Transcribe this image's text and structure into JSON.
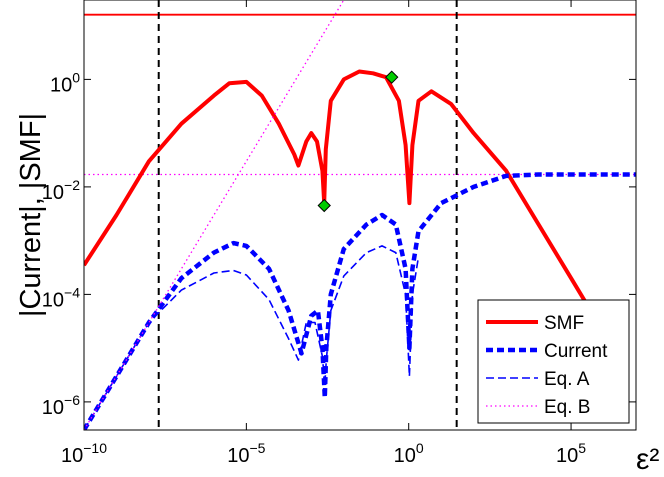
{
  "chart_data": {
    "type": "line",
    "xscale": "log",
    "yscale": "log",
    "xlim": [
      1e-10,
      10000000.0
    ],
    "ylim": [
      3e-07,
      30
    ],
    "xlabel": "ε²",
    "ylabel": "|Current|,  |SMF|",
    "xticks": [
      {
        "value": 1e-10,
        "base": "10",
        "exp": "−10"
      },
      {
        "value": 1e-05,
        "base": "10",
        "exp": "−5"
      },
      {
        "value": 1,
        "base": "10",
        "exp": "0"
      },
      {
        "value": 100000.0,
        "base": "10",
        "exp": "5"
      }
    ],
    "yticks": [
      {
        "value": 1e-06,
        "base": "10",
        "exp": "−6"
      },
      {
        "value": 0.0001,
        "base": "10",
        "exp": "−4"
      },
      {
        "value": 0.01,
        "base": "10",
        "exp": "−2"
      },
      {
        "value": 1,
        "base": "10",
        "exp": "0"
      }
    ],
    "legend": {
      "placement": "bottom-right",
      "entries": [
        "SMF",
        "Current",
        "Eq. A",
        "Eq. B"
      ]
    },
    "series": [
      {
        "name": "SMF",
        "color": "#ff0000",
        "style": "solid-thick",
        "points": [
          [
            1e-10,
            0.00035
          ],
          [
            1e-09,
            0.003
          ],
          [
            1e-08,
            0.03
          ],
          [
            1e-07,
            0.15
          ],
          [
            1e-06,
            0.5
          ],
          [
            3e-06,
            0.85
          ],
          [
            1e-05,
            0.9
          ],
          [
            3e-05,
            0.5
          ],
          [
            0.0001,
            0.15
          ],
          [
            0.0003,
            0.04
          ],
          [
            0.0004,
            0.025
          ],
          [
            0.0007,
            0.07
          ],
          [
            0.001,
            0.1
          ],
          [
            0.0015,
            0.07
          ],
          [
            0.0022,
            0.02
          ],
          [
            0.0025,
            0.005
          ],
          [
            0.0028,
            0.05
          ],
          [
            0.004,
            0.4
          ],
          [
            0.01,
            1.0
          ],
          [
            0.03,
            1.4
          ],
          [
            0.08,
            1.3
          ],
          [
            0.2,
            1.1
          ],
          [
            0.5,
            0.4
          ],
          [
            0.8,
            0.06
          ],
          [
            1.05,
            0.005
          ],
          [
            1.3,
            0.06
          ],
          [
            2,
            0.4
          ],
          [
            5,
            0.6
          ],
          [
            20,
            0.35
          ],
          [
            100,
            0.1
          ],
          [
            1000.0,
            0.02
          ],
          [
            10000.0,
            0.002
          ],
          [
            100000.0,
            0.0002
          ],
          [
            1000000.0,
            2e-05
          ],
          [
            3000000.0,
            6e-06
          ]
        ]
      },
      {
        "name": "Current",
        "color": "#0000ff",
        "style": "dashed-thick",
        "points": [
          [
            1e-10,
            3e-07
          ],
          [
            1e-09,
            3e-06
          ],
          [
            1e-08,
            3e-05
          ],
          [
            1e-07,
            0.0002
          ],
          [
            1e-06,
            0.0006
          ],
          [
            4e-06,
            0.0009
          ],
          [
            1e-05,
            0.0008
          ],
          [
            5e-05,
            0.0003
          ],
          [
            0.0002,
            5e-05
          ],
          [
            0.0005,
            8e-06
          ],
          [
            0.001,
            4e-05
          ],
          [
            0.0016,
            5e-05
          ],
          [
            0.0022,
            1e-05
          ],
          [
            0.0026,
            1.2e-06
          ],
          [
            0.0029,
            1e-05
          ],
          [
            0.004,
            0.0001
          ],
          [
            0.01,
            0.0007
          ],
          [
            0.05,
            0.002
          ],
          [
            0.15,
            0.003
          ],
          [
            0.4,
            0.002
          ],
          [
            0.8,
            0.0003
          ],
          [
            1.05,
            1e-05
          ],
          [
            1.3,
            0.0003
          ],
          [
            2,
            0.0015
          ],
          [
            10,
            0.005
          ],
          [
            100,
            0.01
          ],
          [
            1000.0,
            0.016
          ],
          [
            10000.0,
            0.017
          ],
          [
            100000.0,
            0.017
          ],
          [
            10000000.0,
            0.017
          ]
        ]
      },
      {
        "name": "Eq. A",
        "color": "#0000ff",
        "style": "dashed-thin",
        "points": [
          [
            1e-10,
            3e-07
          ],
          [
            1e-09,
            3e-06
          ],
          [
            1e-08,
            3e-05
          ],
          [
            1e-07,
            0.00012
          ],
          [
            1e-06,
            0.00025
          ],
          [
            4e-06,
            0.00028
          ],
          [
            1e-05,
            0.00023
          ],
          [
            5e-05,
            8e-05
          ],
          [
            0.0002,
            1.5e-05
          ],
          [
            0.0004,
            6e-06
          ],
          [
            0.0007,
            3e-05
          ],
          [
            0.0013,
            3e-05
          ],
          [
            0.0022,
            7e-06
          ],
          [
            0.0026,
            2e-06
          ],
          [
            0.0029,
            6e-06
          ],
          [
            0.004,
            5e-05
          ],
          [
            0.01,
            0.00022
          ],
          [
            0.05,
            0.0006
          ],
          [
            0.15,
            0.0008
          ],
          [
            0.4,
            0.0006
          ],
          [
            0.8,
            0.0001
          ],
          [
            1.05,
            3e-06
          ],
          [
            1.3,
            0.0001
          ],
          [
            2,
            0.0005
          ]
        ]
      },
      {
        "name": "Eq. B",
        "color": "#ff00ff",
        "style": "dotted",
        "points": [
          [
            1e-10,
            3e-07
          ],
          [
            0.01,
            30
          ]
        ]
      }
    ],
    "reference_lines": [
      {
        "orientation": "horizontal",
        "value": 16,
        "color": "#ff0000",
        "style": "solid"
      },
      {
        "orientation": "horizontal",
        "value": 0.017,
        "color": "#ff00ff",
        "style": "dotted"
      },
      {
        "orientation": "vertical",
        "value": 2e-08,
        "color": "#000000",
        "style": "dashed"
      },
      {
        "orientation": "vertical",
        "value": 30,
        "color": "#000000",
        "style": "dashed"
      }
    ],
    "markers": [
      {
        "x": 0.0025,
        "y": 0.0045,
        "color": "#00cc00",
        "shape": "diamond"
      },
      {
        "x": 0.3,
        "y": 1.1,
        "color": "#00cc00",
        "shape": "diamond"
      }
    ]
  }
}
